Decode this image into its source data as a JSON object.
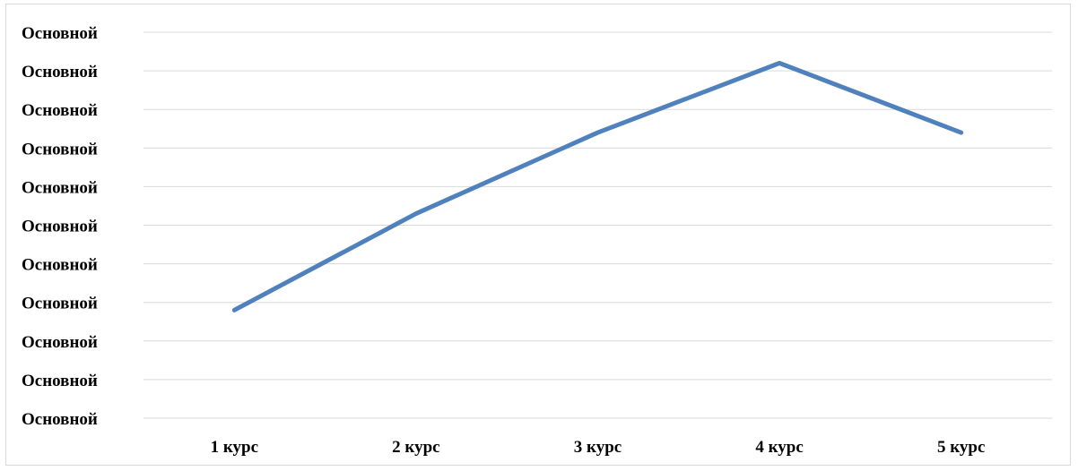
{
  "chart_data": {
    "type": "line",
    "title": "",
    "xlabel": "",
    "ylabel": "",
    "categories": [
      "1 курс",
      "2 курс",
      "3 курс",
      "4 курс",
      "5 курс"
    ],
    "y_tick_labels": [
      "Основной",
      "Основной",
      "Основной",
      "Основной",
      "Основной",
      "Основной",
      "Основной",
      "Основной",
      "Основной",
      "Основной",
      "Основной"
    ],
    "ylim": [
      0,
      10
    ],
    "grid": true,
    "legend": "none",
    "series": [
      {
        "values": [
          2.8,
          5.3,
          7.4,
          9.2,
          7.4
        ],
        "color": "#4f81bd"
      }
    ]
  }
}
